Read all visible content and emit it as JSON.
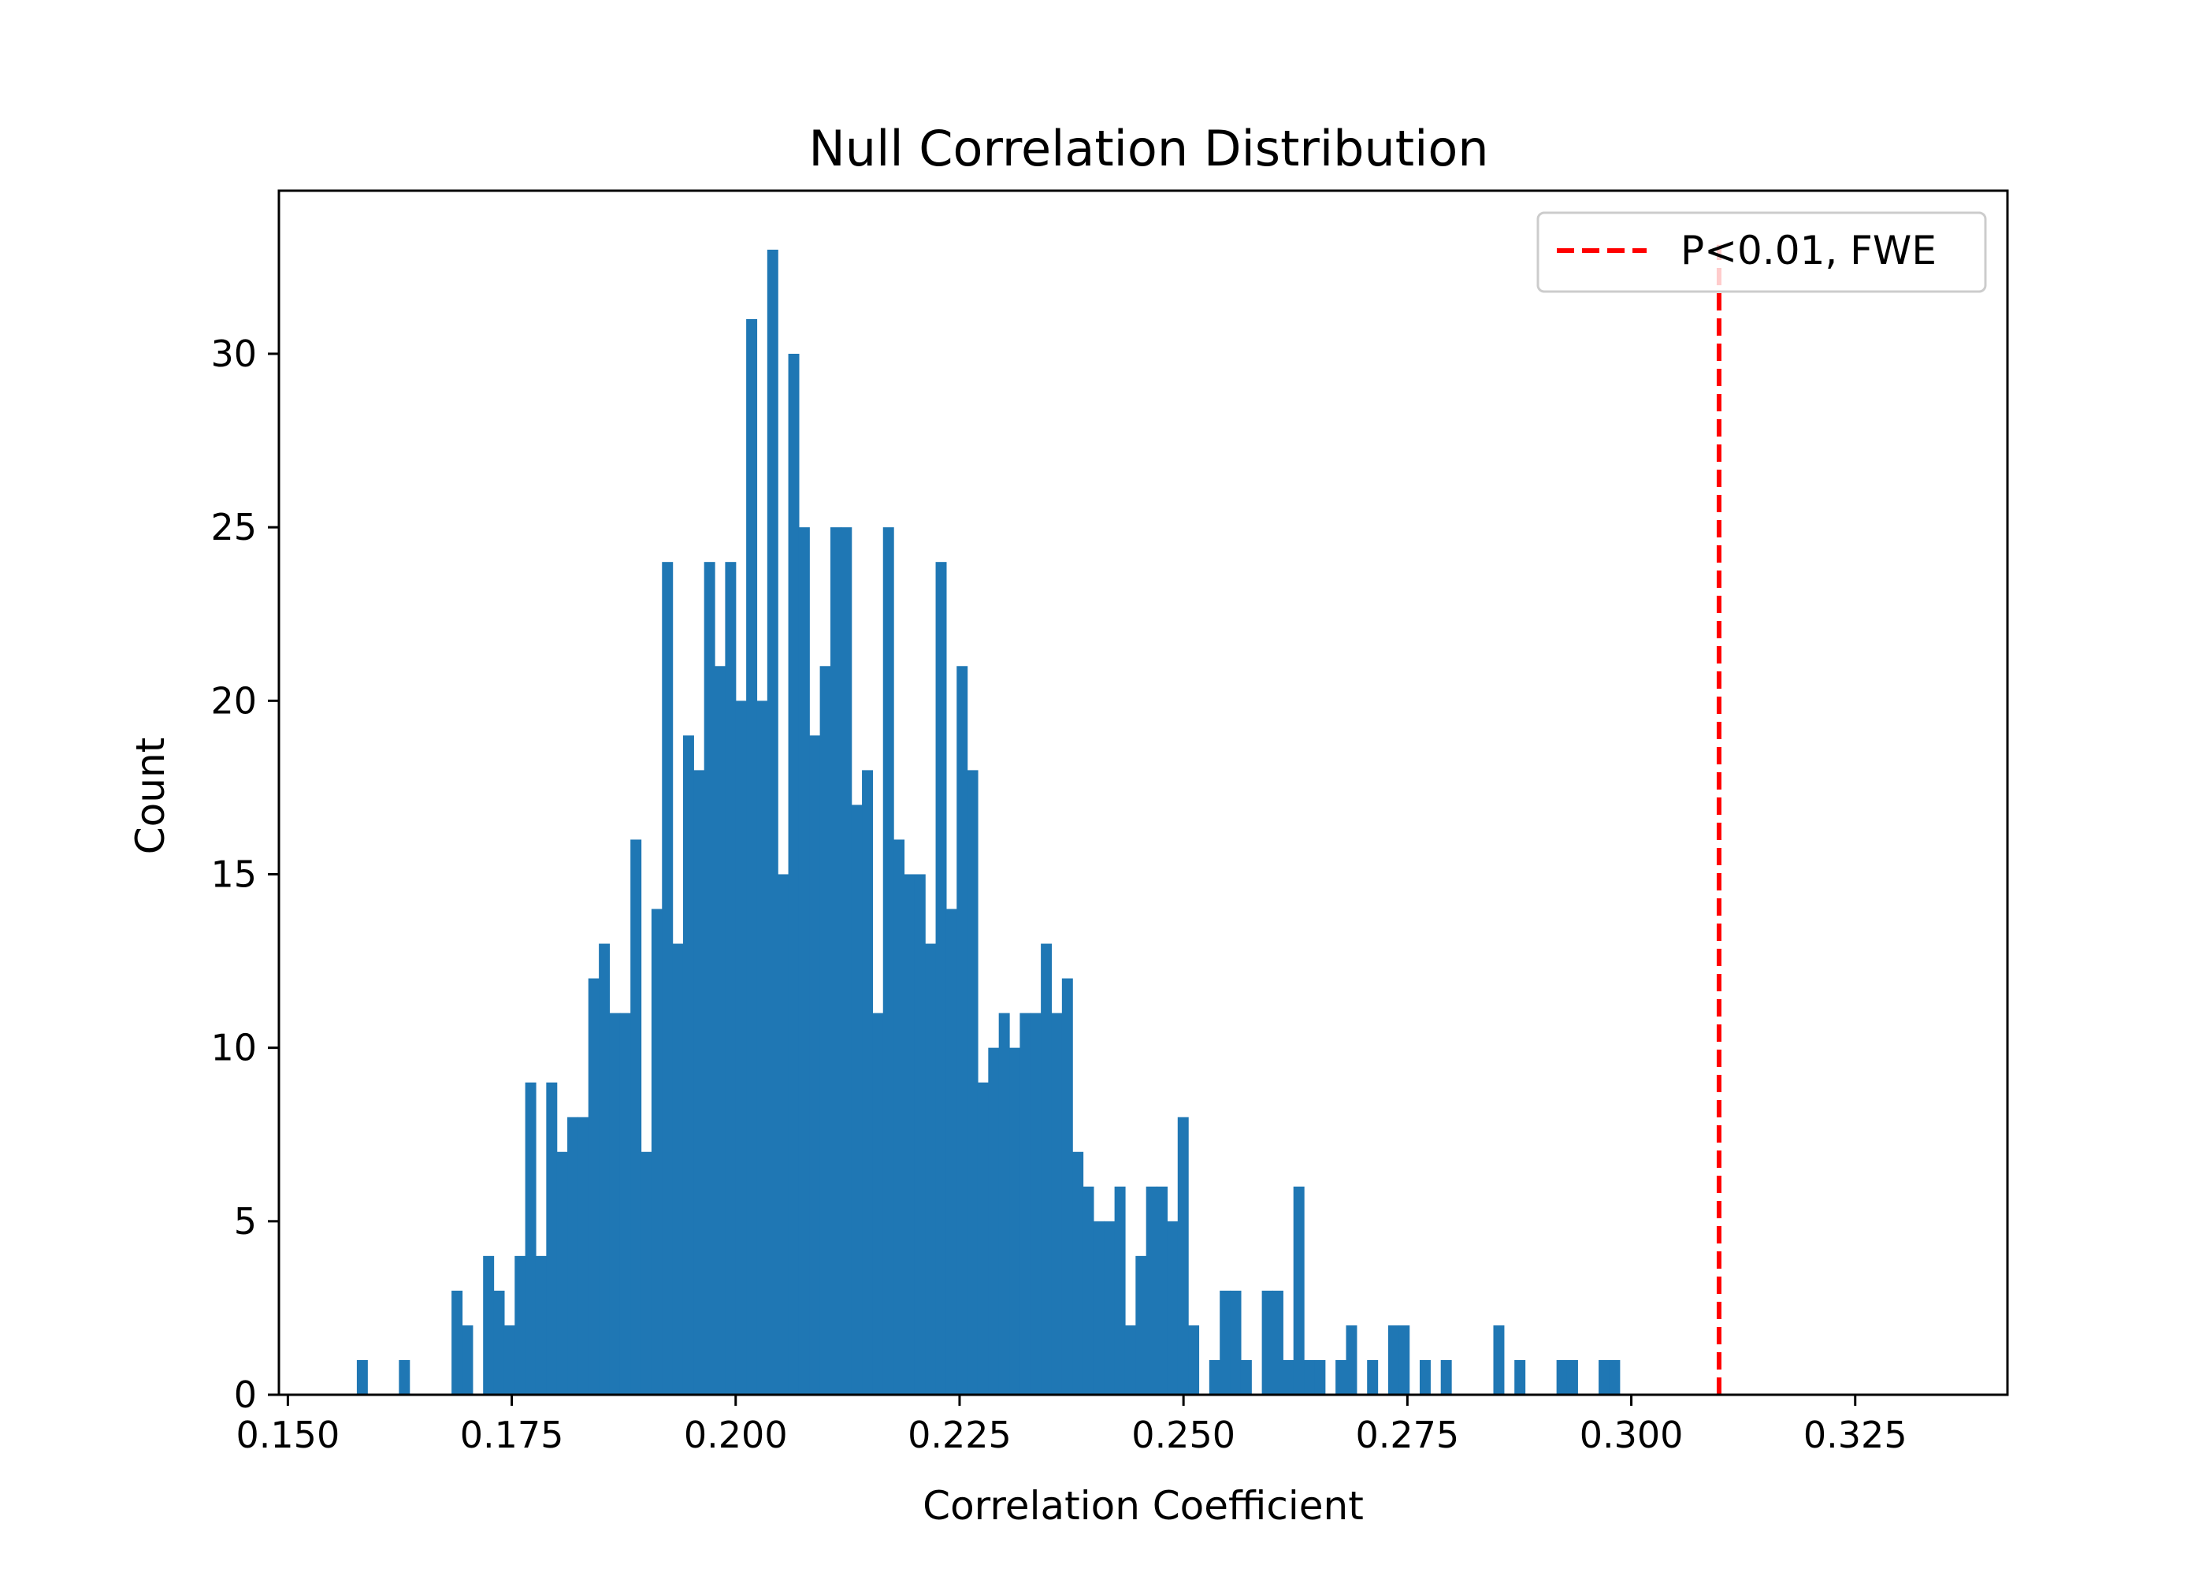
{
  "chart_data": {
    "type": "bar",
    "title": "Null Correlation Distribution",
    "xlabel": "Correlation Coefficient",
    "ylabel": "Count",
    "xlim": [
      0.149,
      0.342
    ],
    "ylim": [
      0,
      34.7
    ],
    "x_ticks": [
      0.15,
      0.175,
      0.2,
      0.225,
      0.25,
      0.275,
      0.3,
      0.325
    ],
    "x_tick_labels": [
      "0.150",
      "0.175",
      "0.200",
      "0.225",
      "0.250",
      "0.275",
      "0.300",
      "0.325"
    ],
    "y_ticks": [
      0,
      5,
      10,
      15,
      20,
      25,
      30
    ],
    "y_tick_labels": [
      "0",
      "5",
      "10",
      "15",
      "20",
      "25",
      "30"
    ],
    "bins": {
      "start": 0.1577,
      "width": 0.001175,
      "counts": [
        1,
        0,
        0,
        0,
        1,
        0,
        0,
        0,
        0,
        3,
        2,
        0,
        4,
        3,
        2,
        4,
        9,
        4,
        9,
        7,
        8,
        8,
        12,
        13,
        11,
        11,
        16,
        7,
        14,
        24,
        13,
        19,
        18,
        24,
        21,
        24,
        20,
        31,
        20,
        33,
        15,
        30,
        25,
        19,
        21,
        25,
        25,
        17,
        18,
        11,
        25,
        16,
        15,
        15,
        13,
        24,
        14,
        21,
        18,
        9,
        10,
        11,
        10,
        11,
        11,
        13,
        11,
        12,
        7,
        6,
        5,
        5,
        6,
        2,
        4,
        6,
        6,
        5,
        8,
        2,
        0,
        1,
        3,
        3,
        1,
        0,
        3,
        3,
        1,
        6,
        1,
        1,
        0,
        1,
        2,
        0,
        1,
        0,
        2,
        2,
        0,
        1,
        0,
        1,
        0,
        0,
        0,
        0,
        2,
        0,
        1,
        0,
        0,
        0,
        1,
        1,
        0,
        0,
        1,
        1
      ],
      "color": "#1f77b4"
    },
    "threshold": {
      "x": 0.3098,
      "color": "#ff0000",
      "style": "dashed",
      "label": "P<0.01, FWE"
    },
    "legend": {
      "placement": "top-right",
      "entries": [
        "P<0.01, FWE"
      ]
    },
    "grid": false
  }
}
